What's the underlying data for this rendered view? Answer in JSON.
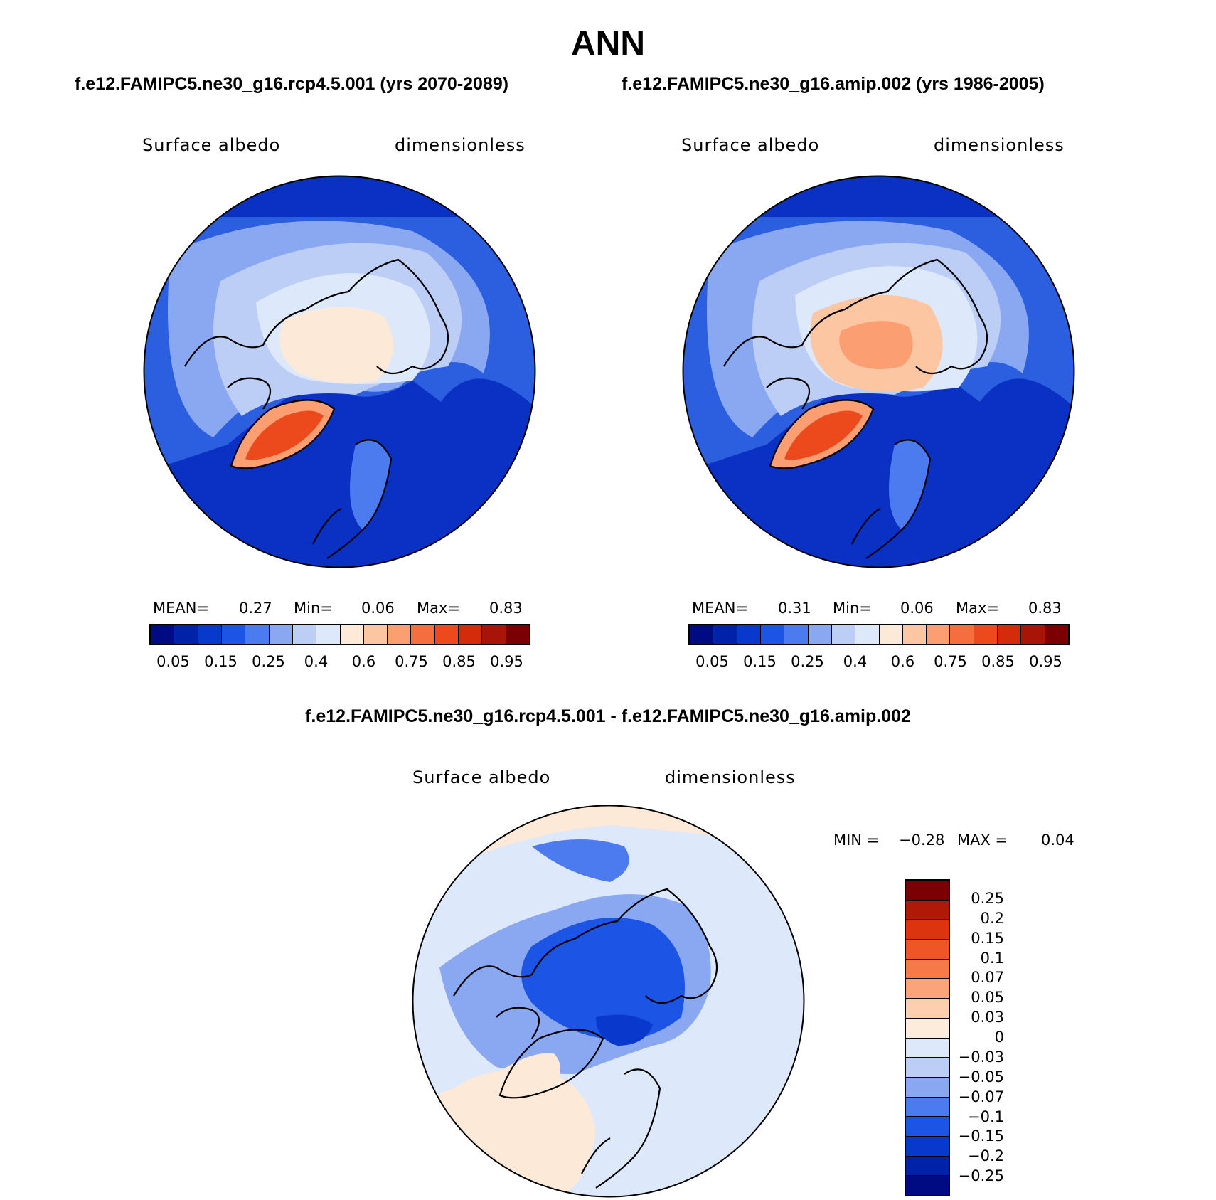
{
  "title": "ANN",
  "case1": "f.e12.FAMIPC5.ne30_g16.rcp4.5.001 (yrs 2070-2089)",
  "case2": "f.e12.FAMIPC5.ne30_g16.amip.002 (yrs 1986-2005)",
  "diff_title": "f.e12.FAMIPC5.ne30_g16.rcp4.5.001 - f.e12.FAMIPC5.ne30_g16.amip.002",
  "variable": "Surface albedo",
  "units": "dimensionless",
  "panel1": {
    "mean_label": "MEAN=",
    "mean": "0.27",
    "min_label": "Min=",
    "min": "0.06",
    "max_label": "Max=",
    "max": "0.83"
  },
  "panel2": {
    "mean_label": "MEAN=",
    "mean": "0.31",
    "min_label": "Min=",
    "min": "0.06",
    "max_label": "Max=",
    "max": "0.83"
  },
  "diff": {
    "min_label": "MIN =",
    "min": "−0.28",
    "max_label": "MAX =",
    "max": "0.04"
  },
  "abs_colorbar": {
    "colors": [
      "#000a82",
      "#0022a8",
      "#0838cc",
      "#1c55e6",
      "#4c7bf0",
      "#8aa8f2",
      "#bccdf6",
      "#dde9fb",
      "#fde9d8",
      "#fcc6a3",
      "#fb9e72",
      "#f56e40",
      "#ec4a1c",
      "#d42c0a",
      "#a81508",
      "#7a0004"
    ],
    "labels": [
      "0.05",
      "0.15",
      "0.25",
      "0.4",
      "0.6",
      "0.75",
      "0.85",
      "0.95"
    ]
  },
  "diff_colorbar": {
    "colors": [
      "#7a0004",
      "#b01808",
      "#dd3410",
      "#ef5526",
      "#f67a48",
      "#fba47c",
      "#fdcfb0",
      "#fdebdc",
      "#dde9fb",
      "#bccdf6",
      "#8aa8f2",
      "#4c7bf0",
      "#1c55e6",
      "#0838cc",
      "#0022a8",
      "#000a82"
    ],
    "labels": [
      "0.25",
      "0.2",
      "0.15",
      "0.1",
      "0.07",
      "0.05",
      "0.03",
      "0",
      "−0.03",
      "−0.05",
      "−0.07",
      "−0.1",
      "−0.15",
      "−0.2",
      "−0.25"
    ]
  }
}
